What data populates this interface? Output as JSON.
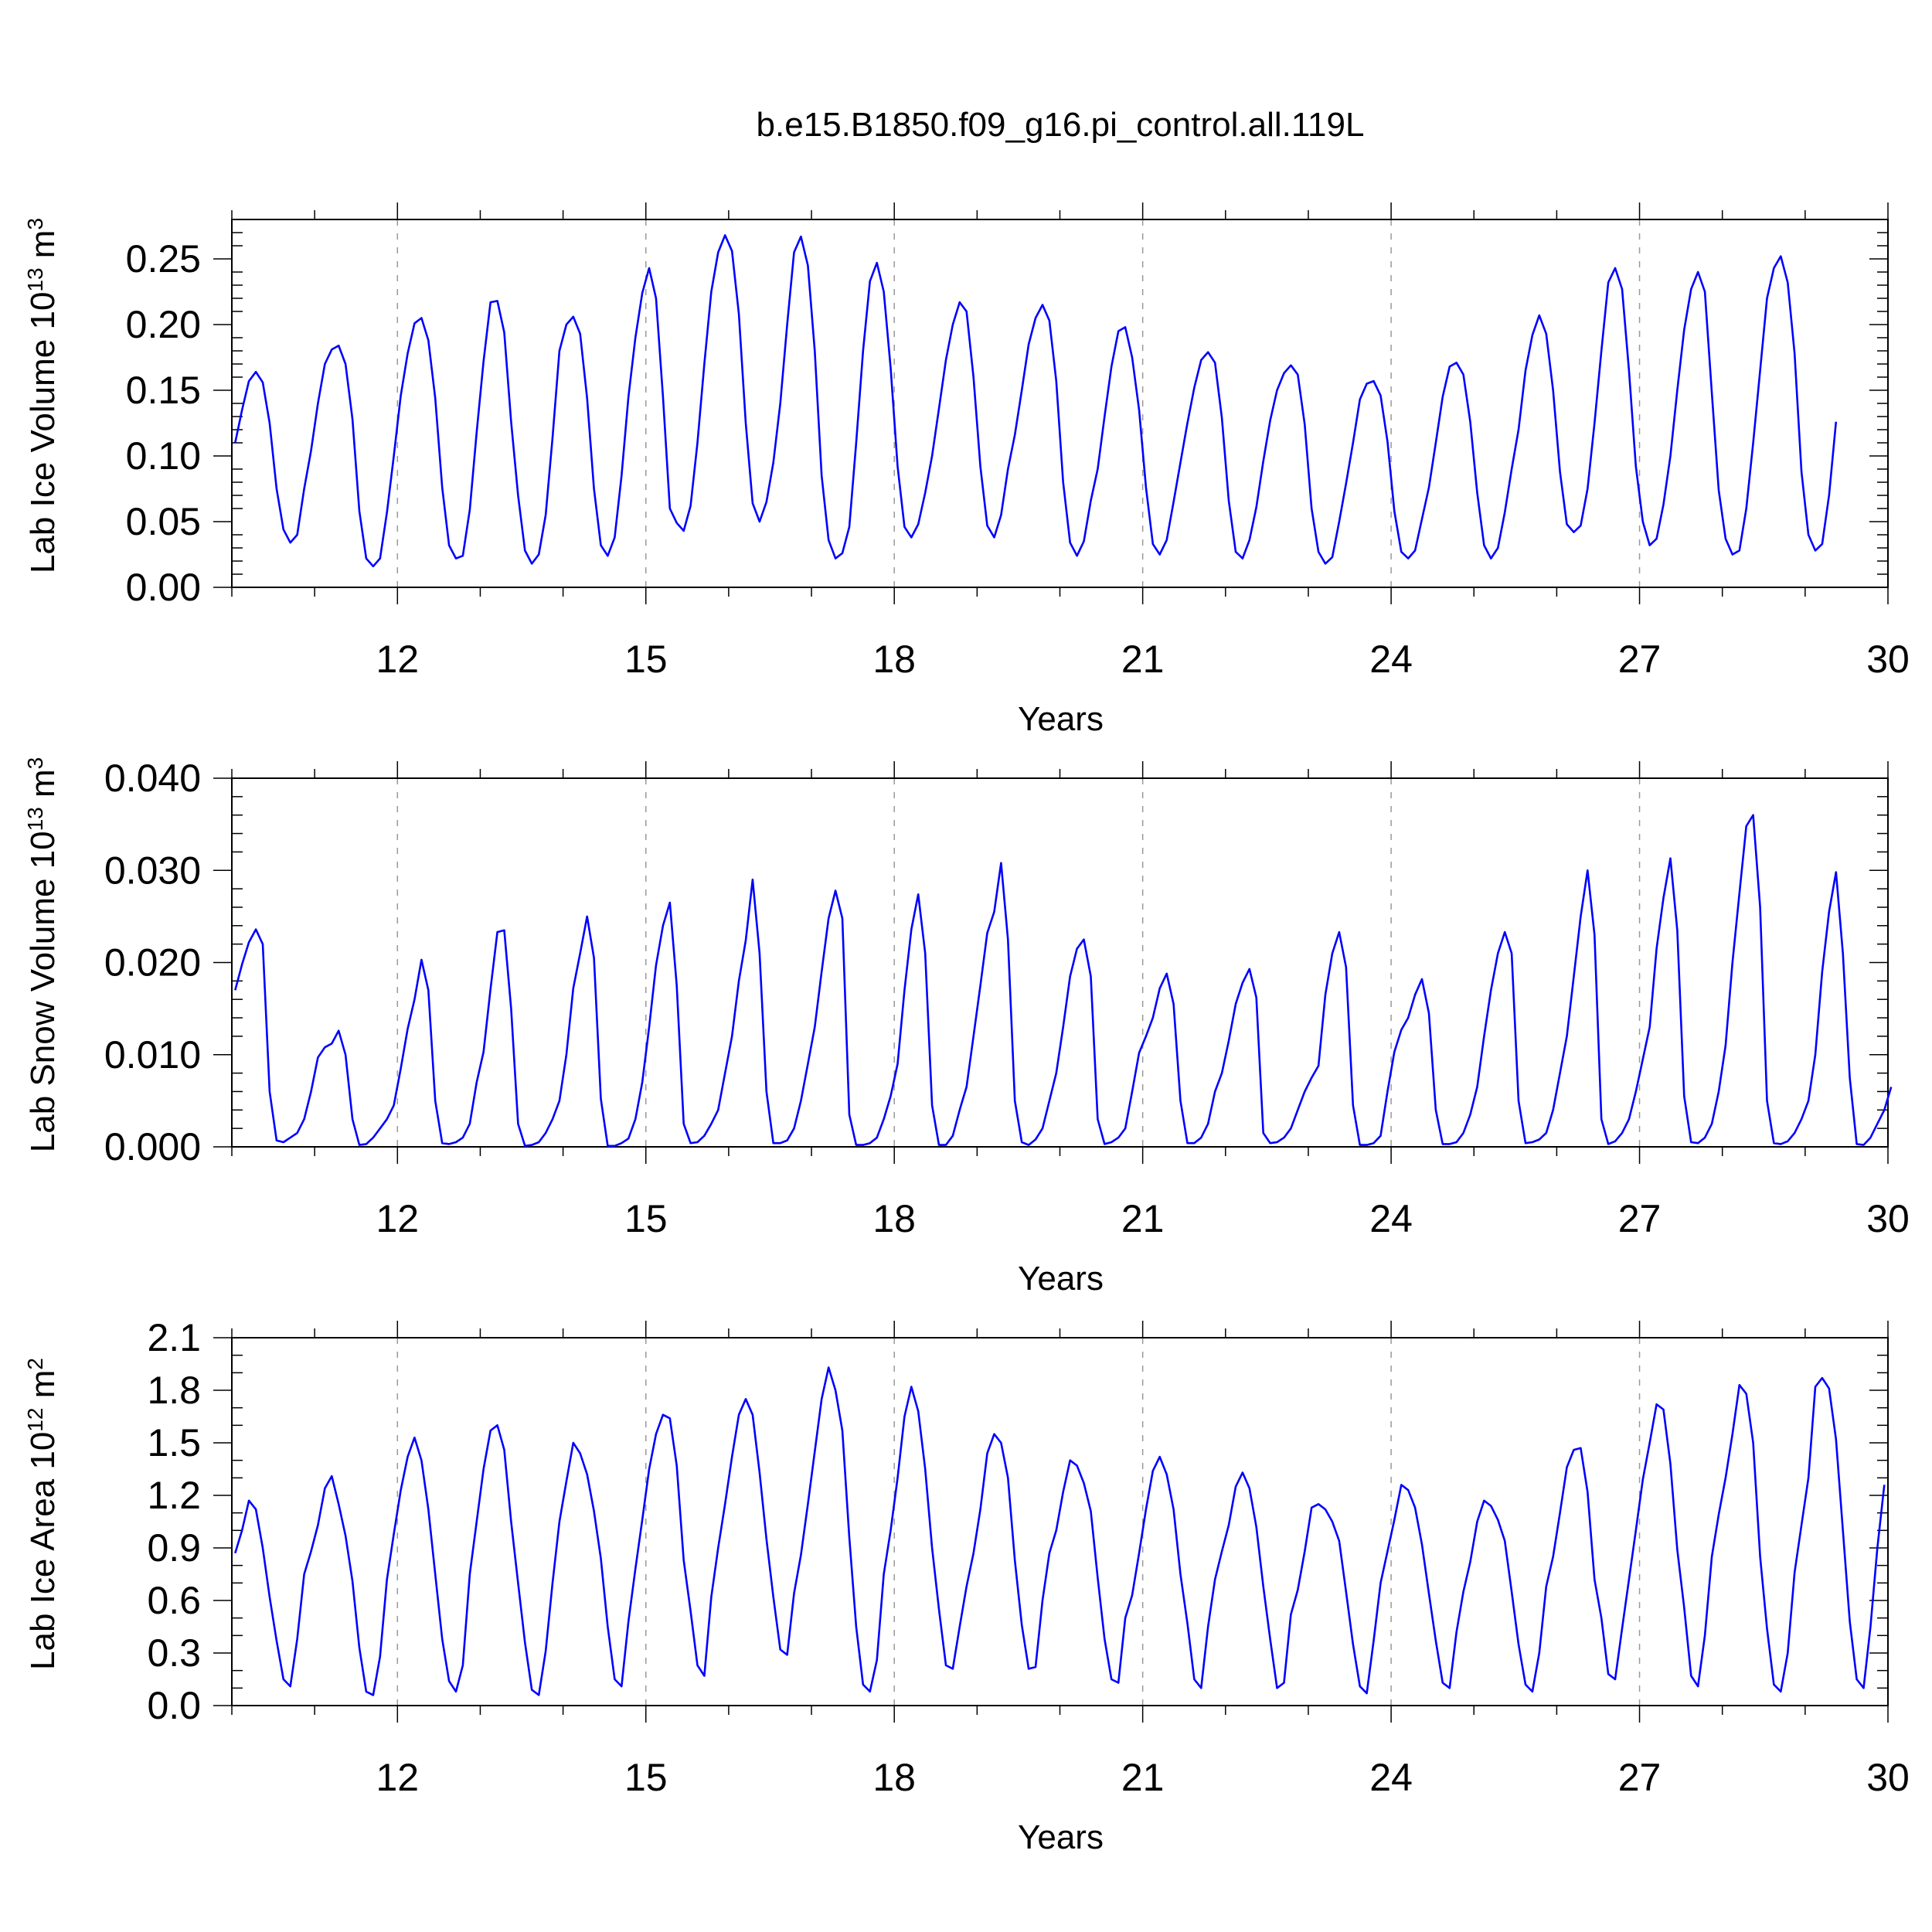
{
  "figure": {
    "title": "b.e15.B1850.f09_g16.pi_control.all.119L",
    "line_color": "#0000ff",
    "grid_color": "#999999"
  },
  "chart_data": [
    {
      "type": "line",
      "ylabel": {
        "main": "Lab Ice Volume 10",
        "exp": "13",
        "unit": " m",
        "unit_exp": "3"
      },
      "xlabel": "Years",
      "xlim": [
        10,
        30
      ],
      "ylim": [
        0,
        0.28
      ],
      "xticks": [
        12,
        15,
        18,
        21,
        24,
        27,
        30
      ],
      "xtick_labels": [
        "12",
        "15",
        "18",
        "21",
        "24",
        "27",
        "30"
      ],
      "yticks": [
        0,
        0.05,
        0.1,
        0.15,
        0.2,
        0.25
      ],
      "ytick_labels": [
        "0.00",
        "0.05",
        "0.10",
        "0.15",
        "0.20",
        "0.25"
      ],
      "minor_per_major": 5,
      "grid": "vertical-dashed",
      "series": [
        {
          "x_start": 10.04,
          "dx": 0.08333,
          "values": [
            0.11,
            0.135,
            0.157,
            0.164,
            0.156,
            0.125,
            0.075,
            0.044,
            0.034,
            0.04,
            0.075,
            0.104,
            0.14,
            0.17,
            0.181,
            0.184,
            0.17,
            0.128,
            0.058,
            0.022,
            0.016,
            0.022,
            0.057,
            0.1,
            0.146,
            0.178,
            0.201,
            0.205,
            0.188,
            0.144,
            0.076,
            0.032,
            0.022,
            0.024,
            0.059,
            0.118,
            0.172,
            0.217,
            0.218,
            0.194,
            0.126,
            0.07,
            0.028,
            0.018,
            0.025,
            0.055,
            0.114,
            0.18,
            0.2,
            0.206,
            0.193,
            0.144,
            0.075,
            0.032,
            0.024,
            0.038,
            0.085,
            0.145,
            0.19,
            0.224,
            0.243,
            0.22,
            0.145,
            0.06,
            0.049,
            0.043,
            0.062,
            0.11,
            0.17,
            0.225,
            0.255,
            0.268,
            0.256,
            0.208,
            0.125,
            0.064,
            0.05,
            0.065,
            0.095,
            0.14,
            0.2,
            0.255,
            0.267,
            0.245,
            0.18,
            0.085,
            0.036,
            0.022,
            0.026,
            0.046,
            0.11,
            0.18,
            0.233,
            0.247,
            0.225,
            0.167,
            0.092,
            0.046,
            0.038,
            0.048,
            0.072,
            0.1,
            0.136,
            0.173,
            0.2,
            0.217,
            0.21,
            0.16,
            0.092,
            0.047,
            0.038,
            0.055,
            0.09,
            0.116,
            0.15,
            0.185,
            0.205,
            0.215,
            0.203,
            0.157,
            0.08,
            0.034,
            0.024,
            0.035,
            0.066,
            0.09,
            0.13,
            0.168,
            0.195,
            0.198,
            0.175,
            0.135,
            0.076,
            0.033,
            0.025,
            0.036,
            0.065,
            0.095,
            0.125,
            0.152,
            0.173,
            0.179,
            0.171,
            0.129,
            0.066,
            0.027,
            0.022,
            0.036,
            0.061,
            0.096,
            0.127,
            0.15,
            0.163,
            0.169,
            0.162,
            0.124,
            0.06,
            0.027,
            0.018,
            0.023,
            0.05,
            0.079,
            0.11,
            0.143,
            0.155,
            0.157,
            0.146,
            0.111,
            0.058,
            0.027,
            0.022,
            0.028,
            0.052,
            0.076,
            0.11,
            0.145,
            0.168,
            0.171,
            0.162,
            0.126,
            0.072,
            0.032,
            0.022,
            0.03,
            0.057,
            0.09,
            0.12,
            0.165,
            0.192,
            0.207,
            0.193,
            0.15,
            0.088,
            0.048,
            0.042,
            0.047,
            0.075,
            0.125,
            0.18,
            0.232,
            0.243,
            0.227,
            0.165,
            0.092,
            0.05,
            0.032,
            0.037,
            0.063,
            0.1,
            0.15,
            0.196,
            0.227,
            0.24,
            0.225,
            0.148,
            0.074,
            0.037,
            0.025,
            0.028,
            0.06,
            0.11,
            0.165,
            0.22,
            0.243,
            0.252,
            0.232,
            0.178,
            0.088,
            0.04,
            0.028,
            0.033,
            0.07,
            0.126
          ]
        }
      ]
    },
    {
      "type": "line",
      "ylabel": {
        "main": "Lab Snow Volume 10",
        "exp": "13",
        "unit": " m",
        "unit_exp": "3"
      },
      "xlabel": "Years",
      "xlim": [
        10,
        30
      ],
      "ylim": [
        0,
        0.04
      ],
      "xticks": [
        12,
        15,
        18,
        21,
        24,
        27,
        30
      ],
      "xtick_labels": [
        "12",
        "15",
        "18",
        "21",
        "24",
        "27",
        "30"
      ],
      "yticks": [
        0,
        0.01,
        0.02,
        0.03,
        0.04
      ],
      "ytick_labels": [
        "0.000",
        "0.010",
        "0.020",
        "0.030",
        "0.040"
      ],
      "minor_per_major": 5,
      "grid": "vertical-dashed",
      "series": [
        {
          "x_start": 10.04,
          "dx": 0.08333,
          "values": [
            0.017,
            0.0198,
            0.0222,
            0.0236,
            0.022,
            0.006,
            0.0007,
            0.0005,
            0.001,
            0.0015,
            0.003,
            0.006,
            0.0097,
            0.0108,
            0.0112,
            0.0126,
            0.01,
            0.003,
            0.0002,
            0.0003,
            0.001,
            0.002,
            0.003,
            0.0045,
            0.0085,
            0.0128,
            0.016,
            0.0203,
            0.017,
            0.005,
            0.0004,
            0.0003,
            0.0005,
            0.001,
            0.0025,
            0.007,
            0.0103,
            0.0171,
            0.0233,
            0.0235,
            0.015,
            0.0025,
            0.0001,
            0.0002,
            0.0005,
            0.0015,
            0.003,
            0.005,
            0.01,
            0.0172,
            0.021,
            0.025,
            0.0205,
            0.0052,
            0.0001,
            0.0001,
            0.0004,
            0.0009,
            0.003,
            0.007,
            0.013,
            0.0197,
            0.024,
            0.0265,
            0.0175,
            0.0025,
            0.0004,
            0.0005,
            0.0012,
            0.0025,
            0.004,
            0.008,
            0.012,
            0.018,
            0.0224,
            0.029,
            0.021,
            0.006,
            0.0004,
            0.0004,
            0.0007,
            0.002,
            0.005,
            0.009,
            0.013,
            0.019,
            0.0248,
            0.0278,
            0.0248,
            0.0035,
            0.0002,
            0.0002,
            0.0004,
            0.001,
            0.003,
            0.0055,
            0.009,
            0.017,
            0.0236,
            0.0274,
            0.021,
            0.0045,
            0.0002,
            0.0002,
            0.0012,
            0.004,
            0.0065,
            0.012,
            0.0175,
            0.0232,
            0.0255,
            0.0308,
            0.0225,
            0.005,
            0.0005,
            0.0002,
            0.0008,
            0.002,
            0.005,
            0.008,
            0.013,
            0.0185,
            0.0215,
            0.0225,
            0.0185,
            0.003,
            0.0003,
            0.0005,
            0.001,
            0.002,
            0.006,
            0.0102,
            0.012,
            0.014,
            0.0172,
            0.0188,
            0.0155,
            0.005,
            0.0004,
            0.0004,
            0.001,
            0.0025,
            0.006,
            0.008,
            0.0115,
            0.0155,
            0.0178,
            0.0193,
            0.0162,
            0.0015,
            0.0004,
            0.0005,
            0.001,
            0.002,
            0.004,
            0.006,
            0.0075,
            0.0088,
            0.0165,
            0.021,
            0.0233,
            0.0195,
            0.0045,
            0.0002,
            0.0002,
            0.0004,
            0.0012,
            0.006,
            0.0103,
            0.0127,
            0.014,
            0.0165,
            0.0182,
            0.0145,
            0.004,
            0.0003,
            0.0003,
            0.0005,
            0.0015,
            0.0035,
            0.0065,
            0.012,
            0.017,
            0.021,
            0.0233,
            0.021,
            0.005,
            0.0004,
            0.0005,
            0.0008,
            0.0015,
            0.004,
            0.008,
            0.012,
            0.0185,
            0.025,
            0.03,
            0.023,
            0.003,
            0.0003,
            0.0006,
            0.0015,
            0.003,
            0.006,
            0.0095,
            0.013,
            0.0215,
            0.027,
            0.0313,
            0.0235,
            0.0055,
            0.0005,
            0.0004,
            0.001,
            0.0025,
            0.006,
            0.011,
            0.02,
            0.0275,
            0.0348,
            0.036,
            0.026,
            0.005,
            0.0004,
            0.0003,
            0.0006,
            0.0015,
            0.003,
            0.005,
            0.01,
            0.019,
            0.0255,
            0.0298,
            0.021,
            0.0075,
            0.0003,
            0.0002,
            0.001,
            0.0025,
            0.004,
            0.0065
          ]
        }
      ]
    },
    {
      "type": "line",
      "ylabel": {
        "main": "Lab Ice Area 10",
        "exp": "12",
        "unit": " m",
        "unit_exp": "2"
      },
      "xlabel": "Years",
      "xlim": [
        10,
        30
      ],
      "ylim": [
        0,
        2.1
      ],
      "xticks": [
        12,
        15,
        18,
        21,
        24,
        27,
        30
      ],
      "xtick_labels": [
        "12",
        "15",
        "18",
        "21",
        "24",
        "27",
        "30"
      ],
      "yticks": [
        0,
        0.3,
        0.6,
        0.9,
        1.2,
        1.5,
        1.8,
        2.1
      ],
      "ytick_labels": [
        "0.0",
        "0.3",
        "0.6",
        "0.9",
        "1.2",
        "1.5",
        "1.8",
        "2.1"
      ],
      "minor_per_major": 3,
      "grid": "vertical-dashed",
      "series": [
        {
          "x_start": 10.04,
          "dx": 0.08333,
          "values": [
            0.87,
            1.0,
            1.17,
            1.12,
            0.9,
            0.62,
            0.37,
            0.15,
            0.11,
            0.38,
            0.75,
            0.88,
            1.03,
            1.24,
            1.31,
            1.15,
            0.97,
            0.71,
            0.33,
            0.08,
            0.06,
            0.28,
            0.72,
            0.98,
            1.23,
            1.42,
            1.53,
            1.4,
            1.12,
            0.75,
            0.38,
            0.14,
            0.08,
            0.23,
            0.75,
            1.05,
            1.35,
            1.57,
            1.6,
            1.46,
            1.05,
            0.7,
            0.36,
            0.09,
            0.06,
            0.31,
            0.7,
            1.05,
            1.28,
            1.5,
            1.44,
            1.32,
            1.11,
            0.84,
            0.45,
            0.15,
            0.11,
            0.48,
            0.78,
            1.06,
            1.35,
            1.55,
            1.66,
            1.64,
            1.37,
            0.83,
            0.54,
            0.23,
            0.17,
            0.62,
            0.9,
            1.15,
            1.42,
            1.66,
            1.75,
            1.66,
            1.33,
            0.95,
            0.62,
            0.32,
            0.29,
            0.64,
            0.86,
            1.15,
            1.45,
            1.75,
            1.93,
            1.8,
            1.57,
            0.96,
            0.45,
            0.12,
            0.08,
            0.26,
            0.75,
            1.0,
            1.3,
            1.65,
            1.82,
            1.68,
            1.35,
            0.9,
            0.55,
            0.23,
            0.21,
            0.45,
            0.68,
            0.87,
            1.12,
            1.44,
            1.55,
            1.5,
            1.3,
            0.83,
            0.46,
            0.21,
            0.22,
            0.6,
            0.87,
            1.0,
            1.22,
            1.4,
            1.37,
            1.27,
            1.11,
            0.73,
            0.38,
            0.15,
            0.13,
            0.5,
            0.63,
            0.87,
            1.12,
            1.34,
            1.42,
            1.32,
            1.12,
            0.75,
            0.47,
            0.15,
            0.1,
            0.45,
            0.72,
            0.88,
            1.03,
            1.25,
            1.33,
            1.24,
            1.02,
            0.68,
            0.38,
            0.1,
            0.13,
            0.52,
            0.66,
            0.88,
            1.13,
            1.15,
            1.12,
            1.05,
            0.94,
            0.65,
            0.35,
            0.11,
            0.07,
            0.37,
            0.7,
            0.88,
            1.06,
            1.26,
            1.23,
            1.13,
            0.92,
            0.64,
            0.37,
            0.13,
            0.1,
            0.42,
            0.65,
            0.82,
            1.05,
            1.17,
            1.14,
            1.06,
            0.94,
            0.65,
            0.35,
            0.12,
            0.08,
            0.3,
            0.68,
            0.85,
            1.1,
            1.36,
            1.46,
            1.47,
            1.22,
            0.72,
            0.5,
            0.18,
            0.15,
            0.44,
            0.72,
            1.0,
            1.29,
            1.5,
            1.72,
            1.69,
            1.38,
            0.89,
            0.56,
            0.17,
            0.11,
            0.4,
            0.85,
            1.09,
            1.3,
            1.55,
            1.83,
            1.78,
            1.5,
            0.85,
            0.44,
            0.12,
            0.08,
            0.3,
            0.76,
            1.03,
            1.3,
            1.82,
            1.87,
            1.81,
            1.52,
            1.0,
            0.48,
            0.15,
            0.1,
            0.45,
            0.9,
            1.26
          ]
        }
      ]
    }
  ]
}
